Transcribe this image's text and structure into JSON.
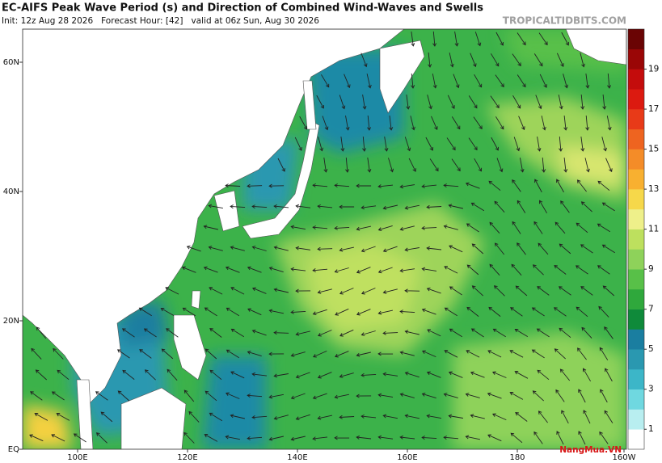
{
  "header": {
    "title": "EC-AIFS Peak Wave Period (s) and Direction of Combined Wind-Waves and Swells",
    "subtitle": "Init: 12z Aug 28 2026   Forecast Hour: [42]   valid at 06z Sun, Aug 30 2026",
    "site": "TROPICALTIDBITS.COM"
  },
  "axes": {
    "lat_labels": [
      "60N",
      "40N",
      "20N",
      "EQ"
    ],
    "lon_labels": [
      "100E",
      "120E",
      "140E",
      "160E",
      "180",
      "160W"
    ]
  },
  "colorbar": {
    "labels": [
      1,
      3,
      5,
      7,
      9,
      11,
      13,
      15,
      17,
      19
    ],
    "colors": [
      "#ffffff",
      "#b8eef0",
      "#6fd8e0",
      "#3cb6c8",
      "#2a98b0",
      "#1a7ea0",
      "#0f8a3a",
      "#2fa83c",
      "#58c048",
      "#8ed25a",
      "#bde05e",
      "#eef08a",
      "#f6d84a",
      "#f8b030",
      "#f48c28",
      "#ee6420",
      "#e83a18",
      "#dc1a10",
      "#c40c0c",
      "#9a0606",
      "#6a0404"
    ]
  },
  "watermark": "NangMua.VN"
}
